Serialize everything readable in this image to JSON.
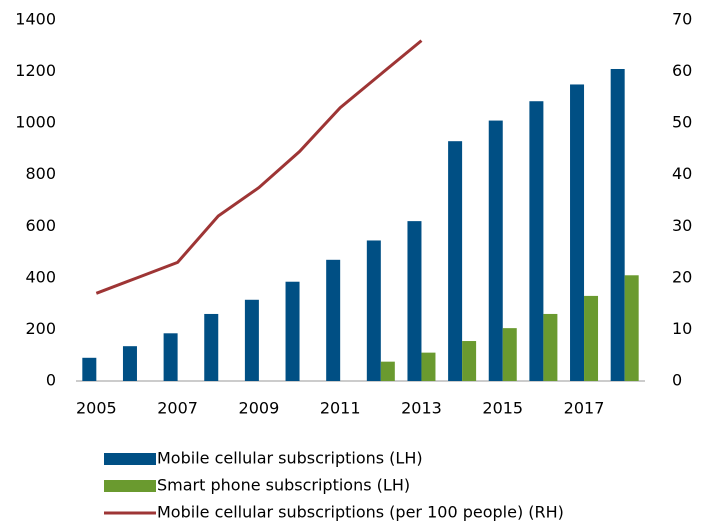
{
  "chart_data": {
    "type": "bar",
    "categories": [
      "2005",
      null,
      "2007",
      null,
      "2009",
      null,
      "2011",
      null,
      "2013",
      null,
      "2015",
      null,
      "2017",
      null
    ],
    "series": [
      {
        "name": "Mobile cellular subscriptions (LH)",
        "type": "bar",
        "color": "#004f84",
        "values": [
          90,
          135,
          185,
          260,
          315,
          385,
          470,
          545,
          620,
          930,
          1010,
          1085,
          1150,
          1210
        ]
      },
      {
        "name": "Smart phone subscriptions (LH)",
        "type": "bar",
        "color": "#6a9a2f",
        "values": [
          null,
          null,
          null,
          null,
          null,
          null,
          null,
          75,
          110,
          155,
          205,
          260,
          330,
          410
        ]
      },
      {
        "name": "Mobile cellular subscriptions (per 100 people) (RH)",
        "type": "line",
        "axis": "y2",
        "color": "#9e3535",
        "values": [
          17,
          20,
          23,
          32,
          37.5,
          44.5,
          53,
          59.5,
          66,
          null,
          null,
          null,
          null,
          null
        ]
      }
    ],
    "ylim": [
      0,
      1400
    ],
    "yticks": [
      0,
      200,
      400,
      600,
      800,
      1000,
      1200,
      1400
    ],
    "y2lim": [
      0,
      70
    ],
    "y2ticks": [
      0,
      10,
      20,
      30,
      40,
      50,
      60,
      70
    ],
    "grid": false,
    "legend": "bottom"
  }
}
